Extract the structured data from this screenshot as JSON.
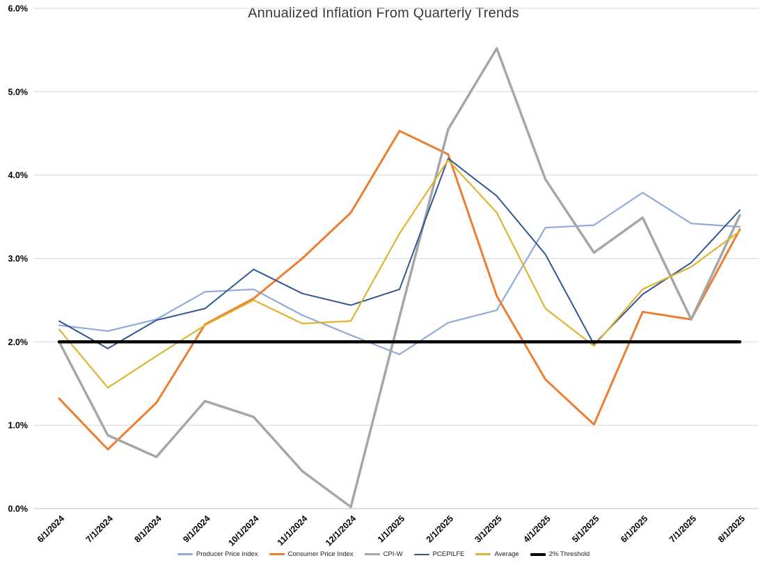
{
  "chart_data": {
    "type": "line",
    "title": "Annualized Inflation From Quarterly Trends",
    "categories": [
      "6/1/2024",
      "7/1/2024",
      "8/1/2024",
      "9/1/2024",
      "10/1/2024",
      "11/1/2024",
      "12/1/2024",
      "1/1/2025",
      "2/1/2025",
      "3/1/2025",
      "4/1/2025",
      "5/1/2025",
      "6/1/2025",
      "7/1/2025",
      "8/1/2025"
    ],
    "series": [
      {
        "name": "Producer Price Index",
        "color": "#8FAADC",
        "width": 2.2,
        "values": [
          2.2,
          2.13,
          2.27,
          2.6,
          2.63,
          2.32,
          2.08,
          1.85,
          2.23,
          2.38,
          3.37,
          3.4,
          3.79,
          3.42,
          3.38
        ]
      },
      {
        "name": "Consumer Price Index",
        "color": "#ED7D31",
        "width": 3,
        "values": [
          1.32,
          0.71,
          1.27,
          2.21,
          2.52,
          3.0,
          3.55,
          4.53,
          4.25,
          2.55,
          1.55,
          1.01,
          2.36,
          2.27,
          3.35
        ]
      },
      {
        "name": "CPI-W",
        "color": "#A6A6A6",
        "width": 3.5,
        "values": [
          2.0,
          0.88,
          0.62,
          1.29,
          1.1,
          0.45,
          0.02,
          2.3,
          4.55,
          5.52,
          3.95,
          3.07,
          3.49,
          2.27,
          3.52
        ]
      },
      {
        "name": "PCEPILFE",
        "color": "#2F5597",
        "width": 2,
        "values": [
          2.25,
          1.92,
          2.26,
          2.4,
          2.87,
          2.58,
          2.44,
          2.63,
          4.2,
          3.75,
          3.05,
          1.97,
          2.57,
          2.95,
          3.58
        ]
      },
      {
        "name": "Average",
        "color": "#DFB32E",
        "width": 2.2,
        "values": [
          2.15,
          1.45,
          1.83,
          2.2,
          2.5,
          2.22,
          2.25,
          3.3,
          4.18,
          3.55,
          2.4,
          1.95,
          2.63,
          2.9,
          3.33
        ]
      },
      {
        "name": "2% Threshold",
        "color": "#000000",
        "width": 4.5,
        "values": [
          2.0,
          2.0,
          2.0,
          2.0,
          2.0,
          2.0,
          2.0,
          2.0,
          2.0,
          2.0,
          2.0,
          2.0,
          2.0,
          2.0,
          2.0
        ]
      }
    ],
    "ylim": [
      0,
      6
    ],
    "yticks": [
      "0.0%",
      "1.0%",
      "2.0%",
      "3.0%",
      "4.0%",
      "5.0%",
      "6.0%"
    ],
    "grid": true,
    "legend_position": "bottom"
  }
}
